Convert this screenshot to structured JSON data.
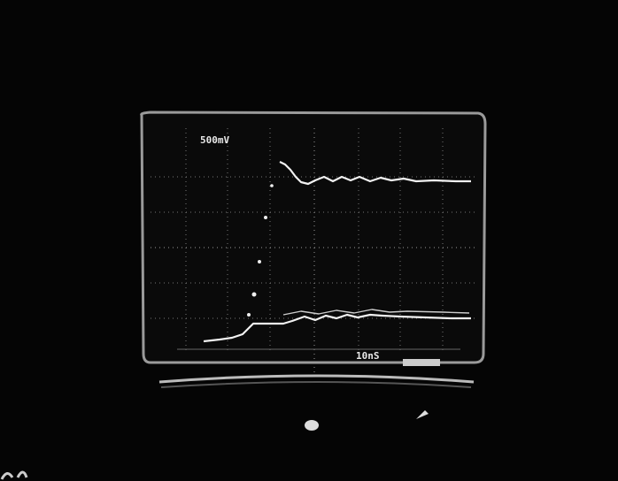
{
  "screen": {
    "volts_per_div": "500mV",
    "time_per_div": "10nS"
  }
}
